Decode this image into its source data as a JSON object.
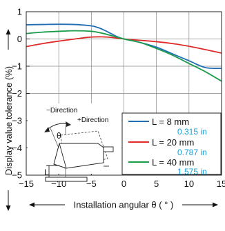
{
  "chart_data": {
    "type": "line",
    "xlabel": "Installation angular θ ( ° )",
    "ylabel": "Display value tolerance (%)",
    "xlim": [
      -15,
      15
    ],
    "ylim": [
      -5,
      1
    ],
    "x_ticks": [
      "−15",
      "−10",
      "−5",
      "0",
      "5",
      "10",
      "15"
    ],
    "y_ticks": [
      "1",
      "0",
      "−1",
      "−2",
      "−3",
      "−4",
      "−5"
    ],
    "grid": true,
    "legend_position": "bottom-right",
    "series": [
      {
        "name": "L = 8 mm",
        "sub": "0.315 in",
        "color": "#1f6db5",
        "x": [
          -15,
          -12.5,
          -10,
          -7.5,
          -5,
          -4,
          -3,
          -2,
          -1,
          0,
          2.5,
          5,
          7.5,
          10,
          12.5,
          15
        ],
        "y": [
          0.52,
          0.53,
          0.54,
          0.53,
          0.48,
          0.42,
          0.32,
          0.2,
          0.08,
          0,
          -0.13,
          -0.3,
          -0.55,
          -0.8,
          -1.05,
          -1.08
        ]
      },
      {
        "name": "L = 20 mm",
        "sub": "0.787 in",
        "color": "#e02a2a",
        "x": [
          -15,
          -12.5,
          -10,
          -7.5,
          -5,
          -2.5,
          0,
          2.5,
          5,
          7.5,
          10,
          12.5,
          15
        ],
        "y": [
          -0.28,
          -0.17,
          -0.08,
          0.0,
          0.07,
          0.07,
          0.0,
          -0.05,
          -0.1,
          -0.17,
          -0.27,
          -0.39,
          -0.52
        ]
      },
      {
        "name": "L = 40 mm",
        "sub": "1.575 in",
        "color": "#1a9c4b",
        "x": [
          -15,
          -12.5,
          -10,
          -7.5,
          -5,
          -3.5,
          -2,
          0,
          2.5,
          5,
          7.5,
          10,
          12.5,
          15
        ],
        "y": [
          0.2,
          0.25,
          0.28,
          0.3,
          0.28,
          0.22,
          0.13,
          0.0,
          -0.13,
          -0.35,
          -0.6,
          -0.9,
          -1.2,
          -1.55
        ]
      }
    ]
  },
  "diagram": {
    "minus_direction": "−Direction",
    "plus_direction": "+Direction",
    "theta": "θ",
    "l_label": "L"
  }
}
